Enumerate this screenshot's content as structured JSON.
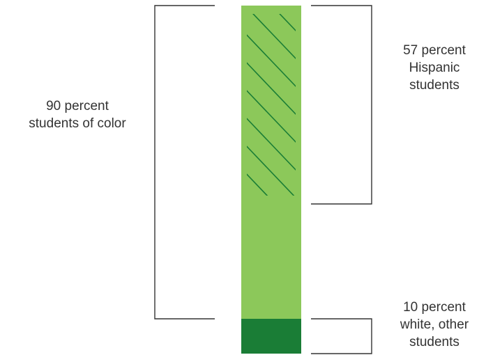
{
  "chart_data": {
    "type": "bar",
    "orientation": "vertical-stacked",
    "segments": [
      {
        "value": 90,
        "color": "#8cc85a",
        "bracket_side": "left",
        "label_lines": [
          "90 percent",
          "students of color"
        ]
      },
      {
        "value": 10,
        "color": "#1a7d36",
        "bracket_side": "right",
        "label_lines": [
          "10 percent",
          "white, other",
          "students"
        ]
      }
    ],
    "sub_segments": [
      {
        "value": 57,
        "within": "students of color",
        "pattern": "diagonal-hatch",
        "pattern_color": "#1a7d36",
        "bracket_side": "right",
        "label_lines": [
          "57 percent",
          "Hispanic",
          "students"
        ]
      }
    ],
    "total": 100,
    "bracket_color": "#333333"
  }
}
